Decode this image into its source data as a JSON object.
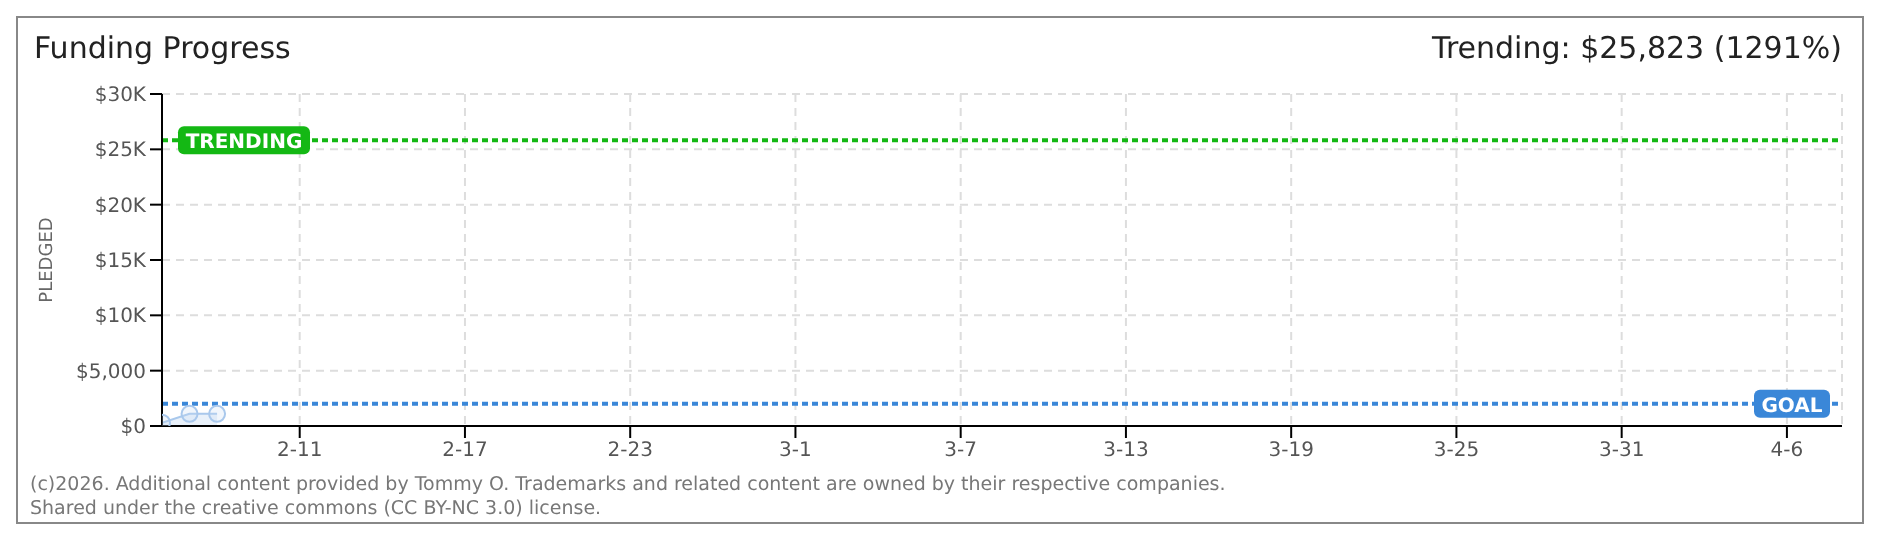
{
  "chart_data": {
    "type": "area",
    "title": "Funding Progress",
    "ylabel": "PLEDGED",
    "annotations": [
      "Trending: $25,823 (1291%)",
      "(c)2026. Additional content provided by Tommy O. Trademarks and related content are owned by their respective companies.",
      "Shared under the creative commons (CC BY-NC 3.0) license."
    ],
    "x": [
      "2026-02-06",
      "2026-02-07",
      "2026-02-08"
    ],
    "series": [
      {
        "color": "#a9c8ec",
        "values": [
          300,
          1100,
          1100
        ]
      }
    ],
    "xlim": [
      "2026-02-06",
      "2026-04-08"
    ],
    "xticks": [
      {
        "value": "2026-02-11",
        "label": "2-11"
      },
      {
        "value": "2026-02-17",
        "label": "2-17"
      },
      {
        "value": "2026-02-23",
        "label": "2-23"
      },
      {
        "value": "2026-03-01",
        "label": "3-1"
      },
      {
        "value": "2026-03-07",
        "label": "3-7"
      },
      {
        "value": "2026-03-13",
        "label": "3-13"
      },
      {
        "value": "2026-03-19",
        "label": "3-19"
      },
      {
        "value": "2026-03-25",
        "label": "3-25"
      },
      {
        "value": "2026-03-31",
        "label": "3-31"
      },
      {
        "value": "2026-04-06",
        "label": "4-6"
      }
    ],
    "ylim": [
      0,
      30000
    ],
    "yticks": [
      {
        "value": 0,
        "label": "$0"
      },
      {
        "value": 5000,
        "label": "$5,000"
      },
      {
        "value": 10000,
        "label": "$10K"
      },
      {
        "value": 15000,
        "label": "$15K"
      },
      {
        "value": 20000,
        "label": "$20K"
      },
      {
        "value": 25000,
        "label": "$25K"
      },
      {
        "value": 30000,
        "label": "$30K"
      }
    ],
    "ref_lines": [
      {
        "axis": "y",
        "value": 25823,
        "label": "TRENDING",
        "color": "#14b814",
        "line_style": "dotted"
      },
      {
        "axis": "y",
        "value": 2000,
        "label": "GOAL",
        "color": "#3a87d8",
        "line_style": "dotted"
      }
    ],
    "grid": true,
    "marker": "circle",
    "legend": false
  }
}
